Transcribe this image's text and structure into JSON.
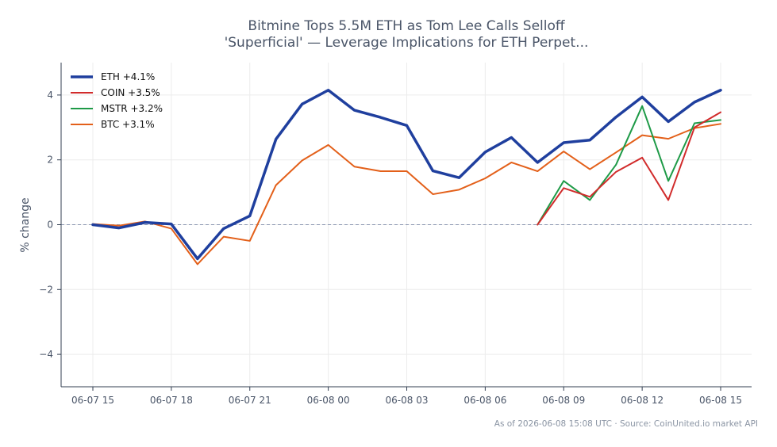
{
  "chart_data": {
    "type": "line",
    "title_lines": [
      "Bitmine Tops 5.5M ETH as Tom Lee Calls Selloff",
      "'Superficial' — Leverage Implications for ETH Perpet..."
    ],
    "xlabel": "",
    "ylabel": "% change",
    "ylim": [
      -5,
      5
    ],
    "yticks": [
      -4,
      -2,
      0,
      2,
      4
    ],
    "ytick_labels": [
      "−4",
      "−2",
      "0",
      "2",
      "4"
    ],
    "x_tick_labels": [
      "06-07 15",
      "06-07 18",
      "06-07 21",
      "06-08 00",
      "06-08 03",
      "06-08 06",
      "06-08 09",
      "06-08 12",
      "06-08 15"
    ],
    "x_hours": [
      "06-07 15:00",
      "06-07 16:00",
      "06-07 17:00",
      "06-07 18:00",
      "06-07 19:00",
      "06-07 20:00",
      "06-07 21:00",
      "06-07 22:00",
      "06-07 23:00",
      "06-08 00:00",
      "06-08 01:00",
      "06-08 02:00",
      "06-08 03:00",
      "06-08 04:00",
      "06-08 05:00",
      "06-08 06:00",
      "06-08 07:00",
      "06-08 08:00",
      "06-08 09:00",
      "06-08 10:00",
      "06-08 11:00",
      "06-08 12:00",
      "06-08 13:00",
      "06-08 14:00",
      "06-08 15:00"
    ],
    "grid": true,
    "legend_position": "top-left",
    "baseline": 0,
    "series": [
      {
        "name": "ETH +4.1%",
        "color": "#1f3f9e",
        "width": 3.5,
        "start_index": 0,
        "values": [
          0.0,
          -0.1,
          0.07,
          0.02,
          -1.05,
          -0.12,
          0.27,
          2.64,
          3.72,
          4.15,
          3.53,
          3.31,
          3.06,
          1.66,
          1.45,
          2.24,
          2.69,
          1.92,
          2.53,
          2.61,
          3.32,
          3.94,
          3.18,
          3.78,
          4.15
        ]
      },
      {
        "name": "COIN +3.5%",
        "color": "#d12b2b",
        "width": 2,
        "start_index": 17,
        "values": [
          0.0,
          1.13,
          0.86,
          1.63,
          2.07,
          0.76,
          3.0,
          3.47
        ]
      },
      {
        "name": "MSTR +3.2%",
        "color": "#1e9a47",
        "width": 2,
        "start_index": 17,
        "values": [
          0.0,
          1.35,
          0.76,
          1.85,
          3.66,
          1.35,
          3.13,
          3.23
        ]
      },
      {
        "name": "BTC +3.1%",
        "color": "#e3601a",
        "width": 2,
        "start_index": 0,
        "values": [
          0.02,
          -0.03,
          0.1,
          -0.12,
          -1.22,
          -0.37,
          -0.5,
          1.22,
          1.98,
          2.46,
          1.79,
          1.65,
          1.65,
          0.94,
          1.08,
          1.43,
          1.92,
          1.65,
          2.26,
          1.71,
          2.23,
          2.76,
          2.65,
          2.98,
          3.11
        ]
      }
    ],
    "footer": "As of 2026-06-08 15:08 UTC · Source: CoinUnited.io market API"
  }
}
